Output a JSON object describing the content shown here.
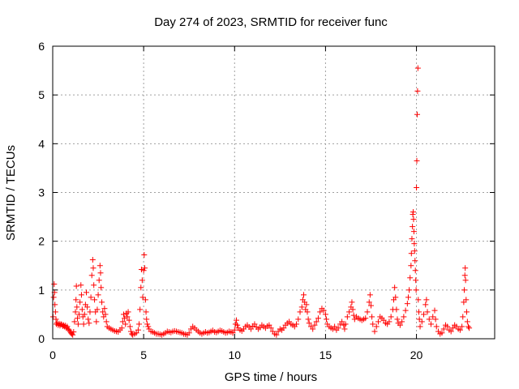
{
  "chart_data": {
    "type": "scatter",
    "title": "Day 274 of 2023, SRMTID for receiver func",
    "xlabel": "GPS time / hours",
    "ylabel": "SRMTID / TECUs",
    "xlim": [
      0,
      24.3
    ],
    "ylim": [
      0,
      6
    ],
    "xticks": [
      0,
      5,
      10,
      15,
      20
    ],
    "yticks": [
      0,
      1,
      2,
      3,
      4,
      5,
      6
    ],
    "grid": true,
    "marker": "+",
    "color": "#ff0000",
    "series": [
      {
        "name": "SRMTID",
        "points": [
          [
            0.02,
            0.45
          ],
          [
            0.05,
            0.85
          ],
          [
            0.08,
            1.12
          ],
          [
            0.1,
            0.95
          ],
          [
            0.12,
            0.7
          ],
          [
            0.15,
            0.55
          ],
          [
            0.18,
            0.4
          ],
          [
            0.2,
            0.3
          ],
          [
            0.25,
            0.33
          ],
          [
            0.3,
            0.28
          ],
          [
            0.35,
            0.31
          ],
          [
            0.4,
            0.27
          ],
          [
            0.45,
            0.3
          ],
          [
            0.5,
            0.29
          ],
          [
            0.55,
            0.26
          ],
          [
            0.6,
            0.28
          ],
          [
            0.65,
            0.25
          ],
          [
            0.7,
            0.27
          ],
          [
            0.75,
            0.22
          ],
          [
            0.8,
            0.25
          ],
          [
            0.85,
            0.2
          ],
          [
            0.9,
            0.18
          ],
          [
            0.95,
            0.15
          ],
          [
            1.0,
            0.12
          ],
          [
            1.05,
            0.1
          ],
          [
            1.1,
            0.08
          ],
          [
            1.15,
            0.14
          ],
          [
            1.2,
            0.35
          ],
          [
            1.25,
            0.55
          ],
          [
            1.28,
            0.8
          ],
          [
            1.3,
            1.08
          ],
          [
            1.33,
            0.65
          ],
          [
            1.36,
            0.42
          ],
          [
            1.4,
            0.3
          ],
          [
            1.45,
            0.5
          ],
          [
            1.5,
            0.75
          ],
          [
            1.55,
            1.1
          ],
          [
            1.58,
            0.9
          ],
          [
            1.62,
            0.6
          ],
          [
            1.66,
            0.45
          ],
          [
            1.7,
            0.3
          ],
          [
            1.75,
            0.5
          ],
          [
            1.8,
            0.7
          ],
          [
            1.85,
            0.95
          ],
          [
            1.9,
            0.65
          ],
          [
            1.95,
            0.4
          ],
          [
            2.0,
            0.32
          ],
          [
            2.05,
            0.55
          ],
          [
            2.1,
            0.85
          ],
          [
            2.15,
            1.3
          ],
          [
            2.2,
            1.62
          ],
          [
            2.23,
            1.45
          ],
          [
            2.26,
            1.1
          ],
          [
            2.3,
            0.8
          ],
          [
            2.35,
            0.55
          ],
          [
            2.4,
            0.35
          ],
          [
            2.45,
            0.6
          ],
          [
            2.5,
            0.9
          ],
          [
            2.55,
            1.2
          ],
          [
            2.6,
            1.5
          ],
          [
            2.63,
            1.35
          ],
          [
            2.66,
            1.05
          ],
          [
            2.7,
            0.75
          ],
          [
            2.75,
            0.55
          ],
          [
            2.8,
            0.45
          ],
          [
            2.85,
            0.62
          ],
          [
            2.9,
            0.5
          ],
          [
            2.95,
            0.35
          ],
          [
            3.0,
            0.25
          ],
          [
            3.1,
            0.22
          ],
          [
            3.2,
            0.2
          ],
          [
            3.3,
            0.18
          ],
          [
            3.4,
            0.16
          ],
          [
            3.5,
            0.15
          ],
          [
            3.6,
            0.14
          ],
          [
            3.7,
            0.18
          ],
          [
            3.8,
            0.22
          ],
          [
            3.85,
            0.35
          ],
          [
            3.9,
            0.5
          ],
          [
            3.95,
            0.42
          ],
          [
            4.0,
            0.3
          ],
          [
            4.05,
            0.52
          ],
          [
            4.1,
            0.45
          ],
          [
            4.15,
            0.55
          ],
          [
            4.2,
            0.38
          ],
          [
            4.25,
            0.25
          ],
          [
            4.3,
            0.15
          ],
          [
            4.35,
            0.1
          ],
          [
            4.4,
            0.08
          ],
          [
            4.5,
            0.1
          ],
          [
            4.6,
            0.12
          ],
          [
            4.7,
            0.18
          ],
          [
            4.75,
            0.3
          ],
          [
            4.8,
            0.6
          ],
          [
            4.85,
            1.05
          ],
          [
            4.88,
            1.42
          ],
          [
            4.92,
            1.2
          ],
          [
            4.95,
            0.85
          ],
          [
            5.0,
            1.4
          ],
          [
            5.03,
            1.72
          ],
          [
            5.06,
            1.45
          ],
          [
            5.1,
            0.8
          ],
          [
            5.13,
            0.55
          ],
          [
            5.16,
            0.4
          ],
          [
            5.2,
            0.3
          ],
          [
            5.25,
            0.25
          ],
          [
            5.3,
            0.2
          ],
          [
            5.4,
            0.15
          ],
          [
            5.5,
            0.14
          ],
          [
            5.6,
            0.12
          ],
          [
            5.7,
            0.1
          ],
          [
            5.8,
            0.1
          ],
          [
            5.9,
            0.09
          ],
          [
            6.0,
            0.08
          ],
          [
            6.1,
            0.1
          ],
          [
            6.2,
            0.12
          ],
          [
            6.3,
            0.15
          ],
          [
            6.4,
            0.14
          ],
          [
            6.5,
            0.13
          ],
          [
            6.6,
            0.15
          ],
          [
            6.7,
            0.16
          ],
          [
            6.8,
            0.15
          ],
          [
            6.9,
            0.14
          ],
          [
            7.0,
            0.13
          ],
          [
            7.1,
            0.12
          ],
          [
            7.2,
            0.1
          ],
          [
            7.3,
            0.09
          ],
          [
            7.4,
            0.08
          ],
          [
            7.5,
            0.12
          ],
          [
            7.6,
            0.2
          ],
          [
            7.7,
            0.25
          ],
          [
            7.8,
            0.22
          ],
          [
            7.9,
            0.18
          ],
          [
            8.0,
            0.15
          ],
          [
            8.1,
            0.12
          ],
          [
            8.2,
            0.1
          ],
          [
            8.3,
            0.12
          ],
          [
            8.4,
            0.14
          ],
          [
            8.5,
            0.12
          ],
          [
            8.6,
            0.13
          ],
          [
            8.7,
            0.15
          ],
          [
            8.8,
            0.17
          ],
          [
            8.9,
            0.14
          ],
          [
            9.0,
            0.13
          ],
          [
            9.1,
            0.15
          ],
          [
            9.2,
            0.17
          ],
          [
            9.3,
            0.16
          ],
          [
            9.4,
            0.14
          ],
          [
            9.5,
            0.12
          ],
          [
            9.6,
            0.13
          ],
          [
            9.7,
            0.15
          ],
          [
            9.8,
            0.14
          ],
          [
            9.9,
            0.12
          ],
          [
            10.0,
            0.18
          ],
          [
            10.05,
            0.3
          ],
          [
            10.1,
            0.38
          ],
          [
            10.15,
            0.28
          ],
          [
            10.2,
            0.22
          ],
          [
            10.3,
            0.18
          ],
          [
            10.4,
            0.16
          ],
          [
            10.5,
            0.2
          ],
          [
            10.6,
            0.25
          ],
          [
            10.7,
            0.28
          ],
          [
            10.8,
            0.24
          ],
          [
            10.9,
            0.2
          ],
          [
            11.0,
            0.26
          ],
          [
            11.1,
            0.3
          ],
          [
            11.2,
            0.24
          ],
          [
            11.3,
            0.2
          ],
          [
            11.4,
            0.23
          ],
          [
            11.5,
            0.28
          ],
          [
            11.6,
            0.25
          ],
          [
            11.7,
            0.22
          ],
          [
            11.8,
            0.26
          ],
          [
            11.9,
            0.28
          ],
          [
            12.0,
            0.22
          ],
          [
            12.1,
            0.15
          ],
          [
            12.2,
            0.1
          ],
          [
            12.3,
            0.08
          ],
          [
            12.4,
            0.15
          ],
          [
            12.5,
            0.2
          ],
          [
            12.6,
            0.18
          ],
          [
            12.7,
            0.22
          ],
          [
            12.8,
            0.28
          ],
          [
            12.9,
            0.32
          ],
          [
            13.0,
            0.35
          ],
          [
            13.1,
            0.3
          ],
          [
            13.2,
            0.28
          ],
          [
            13.3,
            0.25
          ],
          [
            13.4,
            0.3
          ],
          [
            13.5,
            0.4
          ],
          [
            13.6,
            0.55
          ],
          [
            13.7,
            0.65
          ],
          [
            13.75,
            0.8
          ],
          [
            13.8,
            0.9
          ],
          [
            13.85,
            0.75
          ],
          [
            13.9,
            0.6
          ],
          [
            13.95,
            0.7
          ],
          [
            14.0,
            0.55
          ],
          [
            14.05,
            0.4
          ],
          [
            14.1,
            0.32
          ],
          [
            14.2,
            0.25
          ],
          [
            14.3,
            0.2
          ],
          [
            14.4,
            0.28
          ],
          [
            14.5,
            0.35
          ],
          [
            14.6,
            0.42
          ],
          [
            14.7,
            0.55
          ],
          [
            14.8,
            0.62
          ],
          [
            14.9,
            0.58
          ],
          [
            15.0,
            0.5
          ],
          [
            15.05,
            0.4
          ],
          [
            15.1,
            0.3
          ],
          [
            15.2,
            0.25
          ],
          [
            15.3,
            0.22
          ],
          [
            15.4,
            0.2
          ],
          [
            15.5,
            0.25
          ],
          [
            15.6,
            0.18
          ],
          [
            15.7,
            0.22
          ],
          [
            15.8,
            0.3
          ],
          [
            15.9,
            0.35
          ],
          [
            16.0,
            0.28
          ],
          [
            16.05,
            0.2
          ],
          [
            16.1,
            0.3
          ],
          [
            16.2,
            0.45
          ],
          [
            16.3,
            0.55
          ],
          [
            16.4,
            0.65
          ],
          [
            16.45,
            0.75
          ],
          [
            16.5,
            0.6
          ],
          [
            16.55,
            0.48
          ],
          [
            16.6,
            0.4
          ],
          [
            16.7,
            0.45
          ],
          [
            16.8,
            0.42
          ],
          [
            16.9,
            0.4
          ],
          [
            17.0,
            0.38
          ],
          [
            17.1,
            0.4
          ],
          [
            17.2,
            0.42
          ],
          [
            17.3,
            0.55
          ],
          [
            17.4,
            0.75
          ],
          [
            17.45,
            0.9
          ],
          [
            17.5,
            0.68
          ],
          [
            17.55,
            0.45
          ],
          [
            17.6,
            0.3
          ],
          [
            17.7,
            0.15
          ],
          [
            17.8,
            0.25
          ],
          [
            17.9,
            0.35
          ],
          [
            18.0,
            0.45
          ],
          [
            18.1,
            0.42
          ],
          [
            18.2,
            0.38
          ],
          [
            18.3,
            0.32
          ],
          [
            18.4,
            0.3
          ],
          [
            18.5,
            0.35
          ],
          [
            18.6,
            0.45
          ],
          [
            18.7,
            0.6
          ],
          [
            18.75,
            0.8
          ],
          [
            18.8,
            1.05
          ],
          [
            18.85,
            0.85
          ],
          [
            18.9,
            0.6
          ],
          [
            18.95,
            0.4
          ],
          [
            19.0,
            0.32
          ],
          [
            19.1,
            0.28
          ],
          [
            19.2,
            0.35
          ],
          [
            19.3,
            0.45
          ],
          [
            19.4,
            0.58
          ],
          [
            19.5,
            0.72
          ],
          [
            19.55,
            0.85
          ],
          [
            19.6,
            1.0
          ],
          [
            19.65,
            1.25
          ],
          [
            19.7,
            1.5
          ],
          [
            19.72,
            1.75
          ],
          [
            19.75,
            2.05
          ],
          [
            19.78,
            2.3
          ],
          [
            19.8,
            2.55
          ],
          [
            19.82,
            2.6
          ],
          [
            19.84,
            2.45
          ],
          [
            19.86,
            2.2
          ],
          [
            19.88,
            1.95
          ],
          [
            19.9,
            1.8
          ],
          [
            19.92,
            1.6
          ],
          [
            19.94,
            1.4
          ],
          [
            19.96,
            1.2
          ],
          [
            19.98,
            1.0
          ],
          [
            20.0,
            3.1
          ],
          [
            20.02,
            3.65
          ],
          [
            20.04,
            4.6
          ],
          [
            20.06,
            5.08
          ],
          [
            20.08,
            5.55
          ],
          [
            20.1,
            0.8
          ],
          [
            20.13,
            0.55
          ],
          [
            20.16,
            0.4
          ],
          [
            20.2,
            0.25
          ],
          [
            20.3,
            0.35
          ],
          [
            20.4,
            0.5
          ],
          [
            20.5,
            0.7
          ],
          [
            20.55,
            0.8
          ],
          [
            20.6,
            0.55
          ],
          [
            20.7,
            0.4
          ],
          [
            20.8,
            0.3
          ],
          [
            20.9,
            0.45
          ],
          [
            21.0,
            0.58
          ],
          [
            21.05,
            0.4
          ],
          [
            21.1,
            0.25
          ],
          [
            21.2,
            0.15
          ],
          [
            21.3,
            0.1
          ],
          [
            21.4,
            0.12
          ],
          [
            21.5,
            0.2
          ],
          [
            21.6,
            0.28
          ],
          [
            21.7,
            0.25
          ],
          [
            21.8,
            0.18
          ],
          [
            21.9,
            0.15
          ],
          [
            22.0,
            0.22
          ],
          [
            22.1,
            0.28
          ],
          [
            22.2,
            0.25
          ],
          [
            22.3,
            0.2
          ],
          [
            22.4,
            0.18
          ],
          [
            22.5,
            0.25
          ],
          [
            22.55,
            0.45
          ],
          [
            22.6,
            0.75
          ],
          [
            22.63,
            1.0
          ],
          [
            22.66,
            1.3
          ],
          [
            22.68,
            1.45
          ],
          [
            22.7,
            1.2
          ],
          [
            22.73,
            0.8
          ],
          [
            22.76,
            0.55
          ],
          [
            22.8,
            0.35
          ],
          [
            22.85,
            0.25
          ],
          [
            22.9,
            0.22
          ]
        ]
      }
    ]
  }
}
